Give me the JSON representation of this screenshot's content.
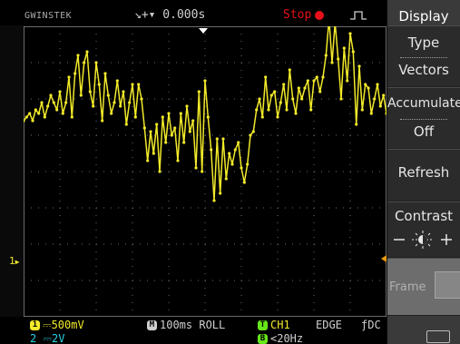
{
  "topbar": {
    "brand": "GWINSTEK",
    "trigger_position": "↘+▾ 0.000s",
    "run_state": "Stop"
  },
  "menu": {
    "title": "Display",
    "type_label": "Type",
    "type_value": "Vectors",
    "accumulate_label": "Accumulate",
    "accumulate_value": "Off",
    "refresh_label": "Refresh",
    "contrast_label": "Contrast",
    "frame_label": "Frame"
  },
  "bottom": {
    "ch1_scale": "500mV",
    "ch1_badge": "1",
    "timebase_badge": "M",
    "timebase": "100ms ROLL",
    "trigger_source_badge": "T",
    "trigger_source": "CH1",
    "trigger_type": "EDGE",
    "trigger_coupling": "ƒDC",
    "ch2_scale": "2V",
    "trigger_filter": "<20Hz"
  },
  "markers": {
    "ch1_ground": "1"
  },
  "colors": {
    "ch1": "#f2ea2a",
    "ch2": "#27d3e6",
    "trigger": "#66e61a",
    "stop": "#e8101a"
  },
  "waveform": {
    "channel": "CH1",
    "divisions_x": 10,
    "divisions_y": 8,
    "values_div": [
      1.4,
      1.5,
      1.6,
      1.4,
      1.7,
      1.6,
      1.9,
      1.5,
      1.8,
      2.1,
      1.9,
      1.7,
      2.2,
      1.6,
      1.9,
      2.6,
      1.5,
      2.7,
      3.2,
      2.1,
      3.0,
      3.3,
      2.2,
      1.8,
      3.0,
      2.4,
      1.4,
      2.7,
      2.1,
      1.6,
      1.9,
      2.5,
      1.8,
      2.2,
      1.3,
      1.9,
      2.4,
      1.5,
      2.4,
      2.0,
      1.2,
      0.3,
      1.1,
      0.5,
      1.3,
      0.0,
      1.5,
      0.8,
      1.6,
      1.0,
      1.2,
      0.3,
      1.6,
      0.8,
      1.8,
      1.1,
      1.4,
      0.1,
      2.2,
      0.0,
      2.5,
      1.5,
      0.6,
      -0.8,
      0.9,
      -0.6,
      0.9,
      -0.2,
      0.5,
      0.2,
      0.6,
      0.8,
      0.1,
      -0.3,
      0.2,
      1.0,
      1.1,
      1.7,
      2.0,
      1.5,
      2.6,
      1.7,
      2.1,
      2.2,
      1.5,
      1.9,
      2.4,
      1.7,
      2.8,
      2.0,
      1.6,
      2.3,
      2.0,
      2.3,
      2.5,
      1.7,
      2.5,
      2.6,
      2.2,
      2.6,
      3.2,
      4.2,
      3.0,
      4.1,
      3.1,
      2.0,
      3.4,
      2.5,
      3.8,
      3.3,
      1.3,
      2.9,
      1.7,
      2.4,
      2.3,
      1.6,
      2.0,
      2.4,
      1.8,
      2.1,
      1.6
    ]
  }
}
